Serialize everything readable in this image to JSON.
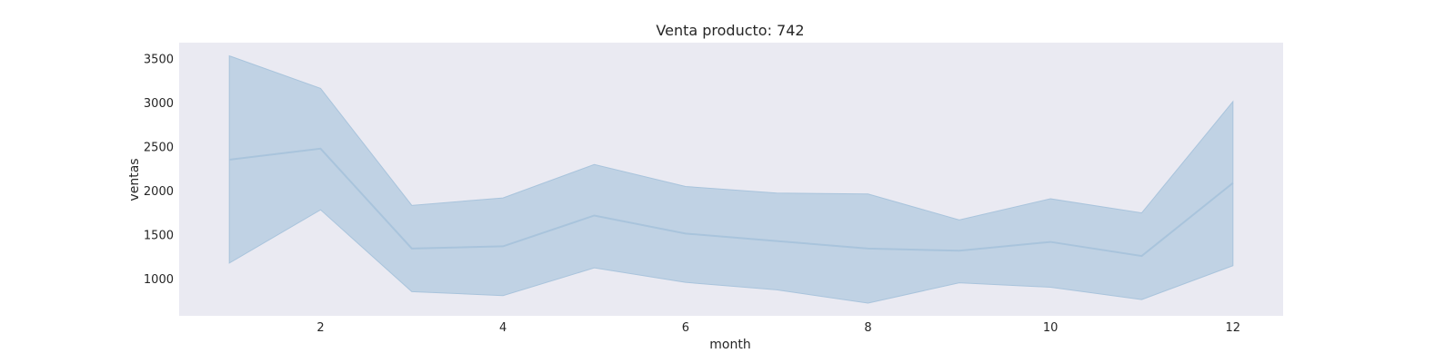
{
  "chart_data": {
    "type": "line",
    "title": "Venta producto: 742",
    "xlabel": "month",
    "ylabel": "ventas",
    "xlim": [
      0.45,
      12.55
    ],
    "ylim": [
      575,
      3680
    ],
    "xticks": [
      2,
      4,
      6,
      8,
      10,
      12
    ],
    "yticks": [
      1000,
      1500,
      2000,
      2500,
      3000,
      3500
    ],
    "grid": false,
    "colors": {
      "background": "#eaeaf2",
      "band": "#c0d2e4",
      "line": "#a9c4dc",
      "band_edge": "#a9c4dc"
    },
    "series": [
      {
        "x": [
          1,
          2,
          3,
          4,
          5,
          6,
          7,
          8,
          9,
          10,
          11,
          12
        ],
        "values": [
          2350,
          2475,
          1340,
          1365,
          1715,
          1510,
          1425,
          1340,
          1315,
          1415,
          1255,
          2085
        ],
        "upper": [
          3530,
          3160,
          1830,
          1915,
          2295,
          2045,
          1970,
          1960,
          1665,
          1905,
          1745,
          3010
        ],
        "lower": [
          1175,
          1780,
          850,
          805,
          1120,
          955,
          870,
          720,
          950,
          900,
          760,
          1145
        ]
      }
    ]
  }
}
